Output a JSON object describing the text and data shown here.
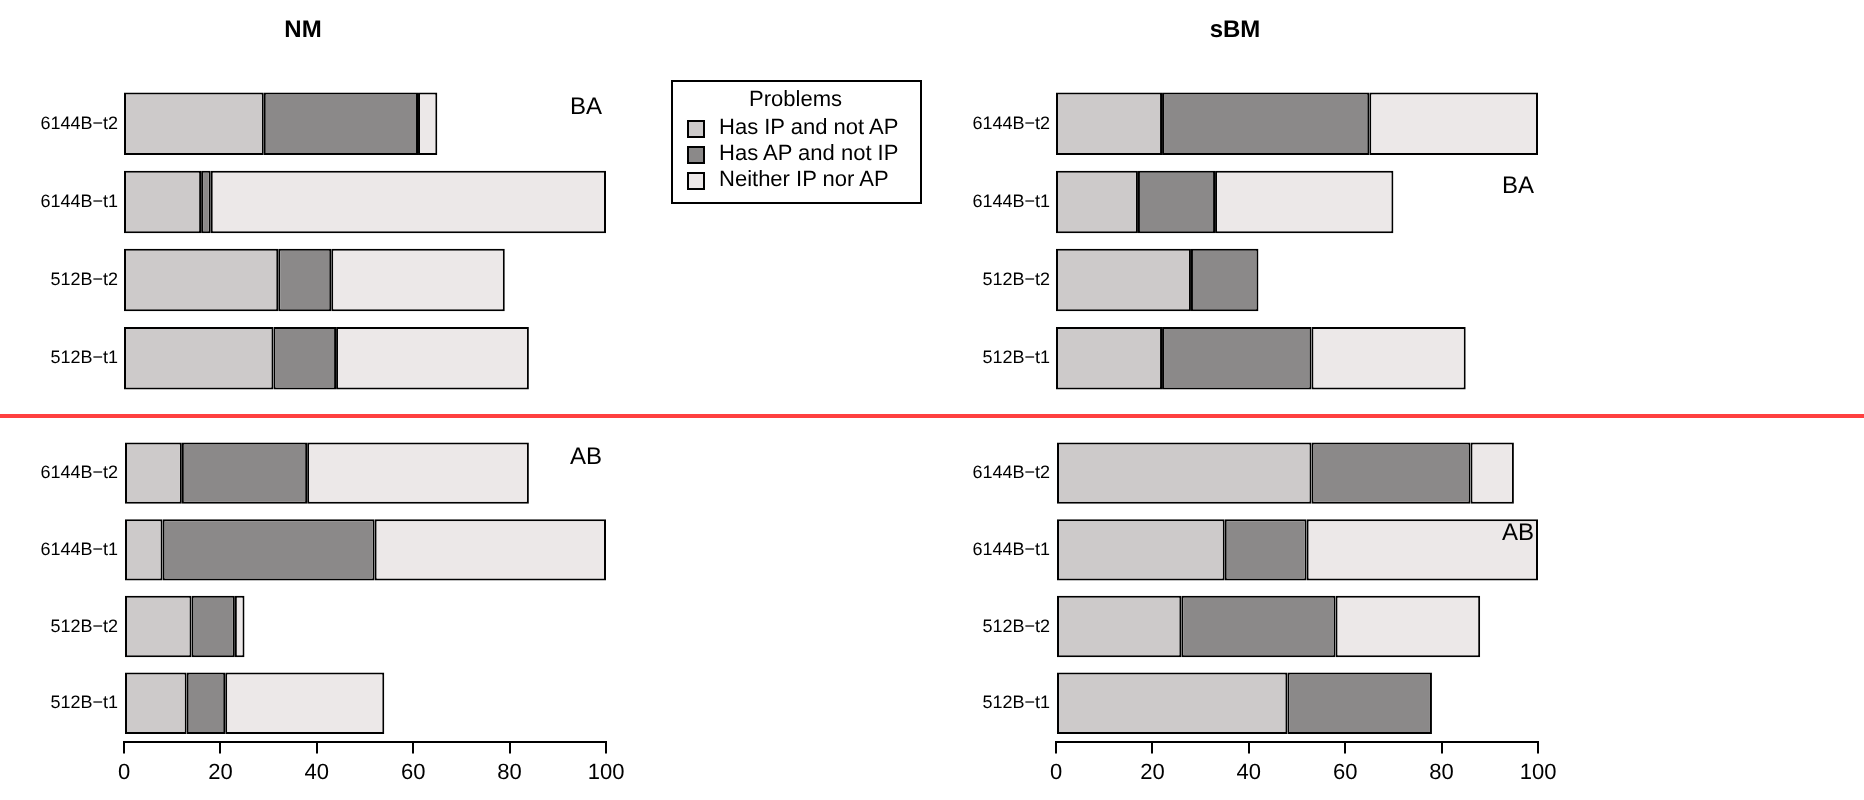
{
  "chart_data": [
    {
      "type": "bar",
      "orientation": "horizontal",
      "stacked": true,
      "title": "NM",
      "categories": [
        "6144B−t2",
        "6144B−t1",
        "512B−t2",
        "512B−t1"
      ],
      "series": [
        {
          "name": "Has IP and not AP",
          "color": "#cdcaca",
          "values": [
            29,
            16,
            32,
            31
          ]
        },
        {
          "name": "Has AP and not IP",
          "color": "#8b8989",
          "values": [
            32,
            2,
            11,
            13
          ]
        },
        {
          "name": "Neither IP nor AP",
          "color": "#ece8e8",
          "values": [
            4,
            82,
            36,
            40
          ]
        }
      ],
      "xlim": [
        0,
        100
      ],
      "tick_labels": "y",
      "grid": false,
      "legend": "top right",
      "legend_title": "Problems",
      "annotations": [
        "BA"
      ]
    },
    {
      "type": "bar",
      "orientation": "horizontal",
      "stacked": true,
      "title": "sBM",
      "categories": [
        "6144B−t2",
        "6144B−t1",
        "512B−t2",
        "512B−t1"
      ],
      "series": [
        {
          "color": "#cdcaca",
          "values": [
            22,
            17,
            28,
            22
          ]
        },
        {
          "color": "#8b8989",
          "values": [
            43,
            16,
            14,
            31
          ]
        },
        {
          "color": "#ece8e8",
          "values": [
            35,
            37,
            0,
            32
          ]
        }
      ],
      "xlim": [
        0,
        100
      ],
      "tick_labels": "y",
      "grid": false,
      "annotations": [
        "BA"
      ]
    },
    {
      "type": "bar",
      "orientation": "horizontal",
      "stacked": true,
      "categories": [
        "6144B−t2",
        "6144B−t1",
        "512B−t2",
        "512B−t1"
      ],
      "series": [
        {
          "color": "#cdcaca",
          "values": [
            12,
            8,
            14,
            13
          ]
        },
        {
          "color": "#8b8989",
          "values": [
            26,
            44,
            9,
            8
          ]
        },
        {
          "color": "#ece8e8",
          "values": [
            46,
            48,
            2,
            33
          ]
        }
      ],
      "xlim": [
        0,
        100
      ],
      "xticks": [
        0,
        20,
        40,
        60,
        80,
        100
      ],
      "grid": false,
      "annotations": [
        "AB"
      ]
    },
    {
      "type": "bar",
      "orientation": "horizontal",
      "stacked": true,
      "categories": [
        "6144B−t2",
        "6144B−t1",
        "512B−t2",
        "512B−t1"
      ],
      "series": [
        {
          "color": "#cdcaca",
          "values": [
            53,
            35,
            26,
            48
          ]
        },
        {
          "color": "#8b8989",
          "values": [
            33,
            17,
            32,
            30
          ]
        },
        {
          "color": "#ece8e8",
          "values": [
            9,
            48,
            30,
            0
          ]
        }
      ],
      "xlim": [
        0,
        100
      ],
      "xticks": [
        0,
        20,
        40,
        60,
        80,
        100
      ],
      "grid": false,
      "annotations": [
        "AB"
      ]
    }
  ]
}
